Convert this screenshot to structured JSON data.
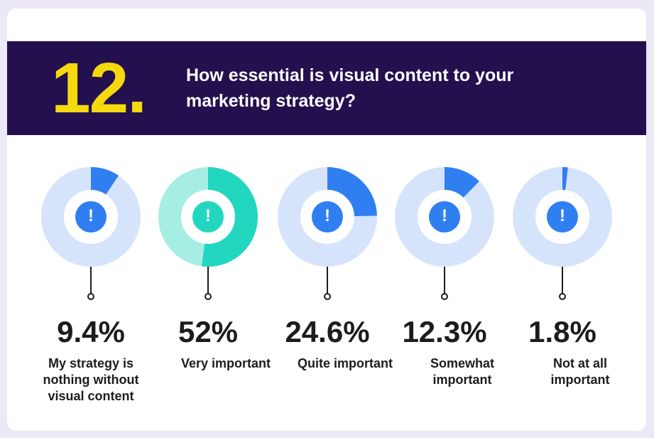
{
  "chart_data": {
    "type": "donut",
    "number": "12.",
    "title": "How essential is visual content to your marketing strategy?",
    "icon": "!",
    "categories": [
      "My strategy is nothing without visual content",
      "Very important",
      "Quite important",
      "Somewhat important",
      "Not at all important"
    ],
    "values": [
      9.4,
      52,
      24.6,
      12.3,
      1.8
    ],
    "value_labels": [
      "9.4%",
      "52%",
      "24.6%",
      "12.3%",
      "1.8%"
    ],
    "colors": [
      "#2f7ff0",
      "#22d6bf",
      "#2f7ff0",
      "#2f7ff0",
      "#2f7ff0"
    ],
    "track_colors": [
      "#d5e4fb",
      "#a6ede3",
      "#d5e4fb",
      "#d5e4fb",
      "#d5e4fb"
    ]
  }
}
